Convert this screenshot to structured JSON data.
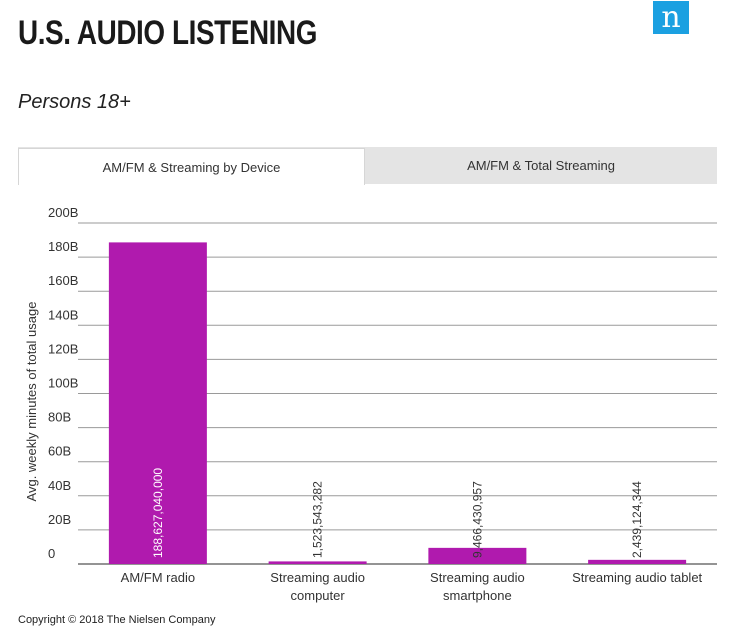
{
  "header": {
    "title": "U.S. AUDIO LISTENING",
    "subtitle": "Persons 18+",
    "logo_letter": "n"
  },
  "tabs": [
    {
      "label": "AM/FM & Streaming by Device",
      "active": true
    },
    {
      "label": "AM/FM & Total Streaming",
      "active": false
    }
  ],
  "colors": {
    "bar": "#b01aae",
    "logo": "#1ba0e1",
    "tab_bg": "#e4e4e4"
  },
  "chart_data": {
    "type": "bar",
    "categories": [
      [
        "AM/FM radio"
      ],
      [
        "Streaming audio",
        "computer"
      ],
      [
        "Streaming audio",
        "smartphone"
      ],
      [
        "Streaming audio tablet"
      ]
    ],
    "values": [
      188627040000,
      1523543282,
      9466430957,
      2439124344
    ],
    "data_labels": [
      "188,627,040,000",
      "1,523,543,282",
      "9,466,430,957",
      "2,439,124,344"
    ],
    "ylabel": "Avg. weekly minutes of total usage",
    "xlabel": "",
    "ylim": [
      0,
      200000000000
    ],
    "yticks": [
      0,
      20000000000,
      40000000000,
      60000000000,
      80000000000,
      100000000000,
      120000000000,
      140000000000,
      160000000000,
      180000000000,
      200000000000
    ],
    "ytick_labels": [
      "0",
      "20B",
      "40B",
      "60B",
      "80B",
      "100B",
      "120B",
      "140B",
      "160B",
      "180B",
      "200B"
    ],
    "grid": true,
    "legend": "none"
  },
  "footer": {
    "copyright": "Copyright © 2018 The Nielsen Company"
  }
}
